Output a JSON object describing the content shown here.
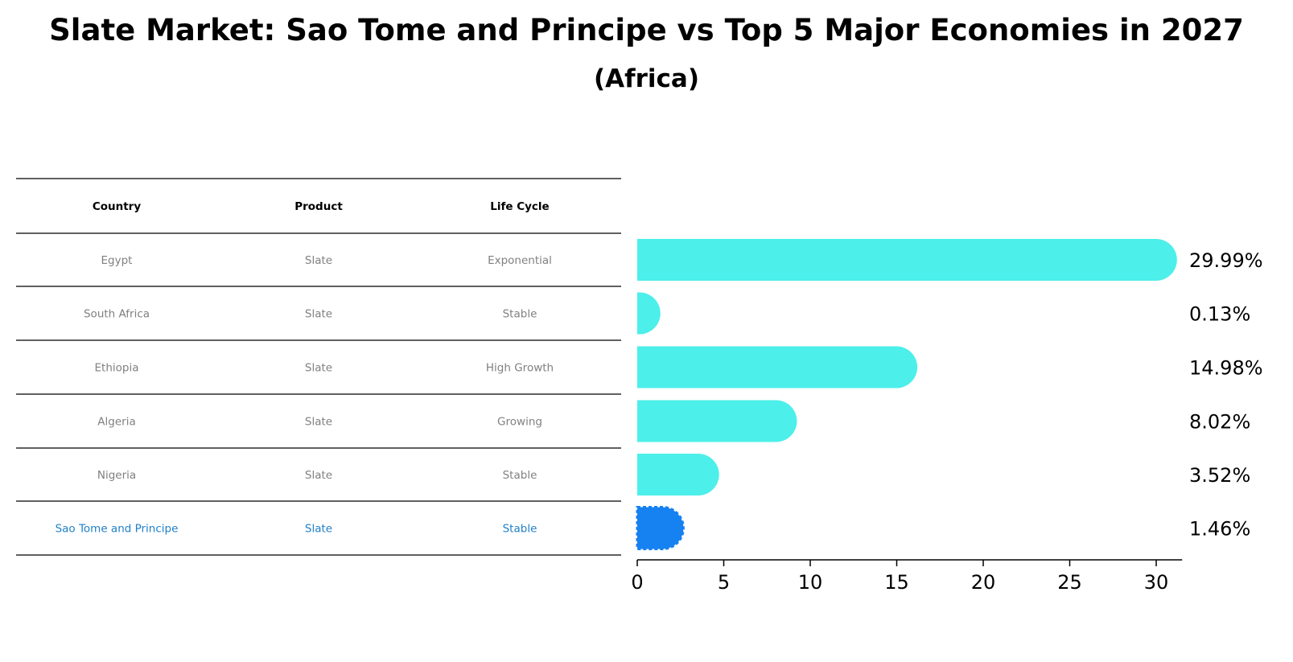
{
  "chart_data": {
    "type": "bar",
    "orientation": "horizontal",
    "title": "Slate Market: Sao Tome and Principe vs Top 5 Major Economies in 2027",
    "subtitle": "(Africa)",
    "table": {
      "columns": [
        "Country",
        "Product",
        "Life Cycle"
      ],
      "rows": [
        {
          "country": "Egypt",
          "product": "Slate",
          "life_cycle": "Exponential",
          "highlight": false
        },
        {
          "country": "South Africa",
          "product": "Slate",
          "life_cycle": "Stable",
          "highlight": false
        },
        {
          "country": "Ethiopia",
          "product": "Slate",
          "life_cycle": "High Growth",
          "highlight": false
        },
        {
          "country": "Algeria",
          "product": "Slate",
          "life_cycle": "Growing",
          "highlight": false
        },
        {
          "country": "Nigeria",
          "product": "Slate",
          "life_cycle": "Stable",
          "highlight": false
        },
        {
          "country": "Sao Tome and Principe",
          "product": "Slate",
          "life_cycle": "Stable",
          "highlight": true
        }
      ]
    },
    "values": [
      29.99,
      0.13,
      14.98,
      8.02,
      3.52,
      1.46
    ],
    "value_labels": [
      "29.99%",
      "0.13%",
      "14.98%",
      "8.02%",
      "3.52%",
      "1.46%"
    ],
    "xlim": [
      0,
      31.5
    ],
    "xticks": [
      0,
      5,
      10,
      15,
      20,
      25,
      30
    ],
    "grid": false,
    "colors": {
      "bar": "#4cefea",
      "highlight_bar": "#1681f0",
      "highlight_text": "#1f7fc8",
      "row_text": "#808080"
    }
  }
}
